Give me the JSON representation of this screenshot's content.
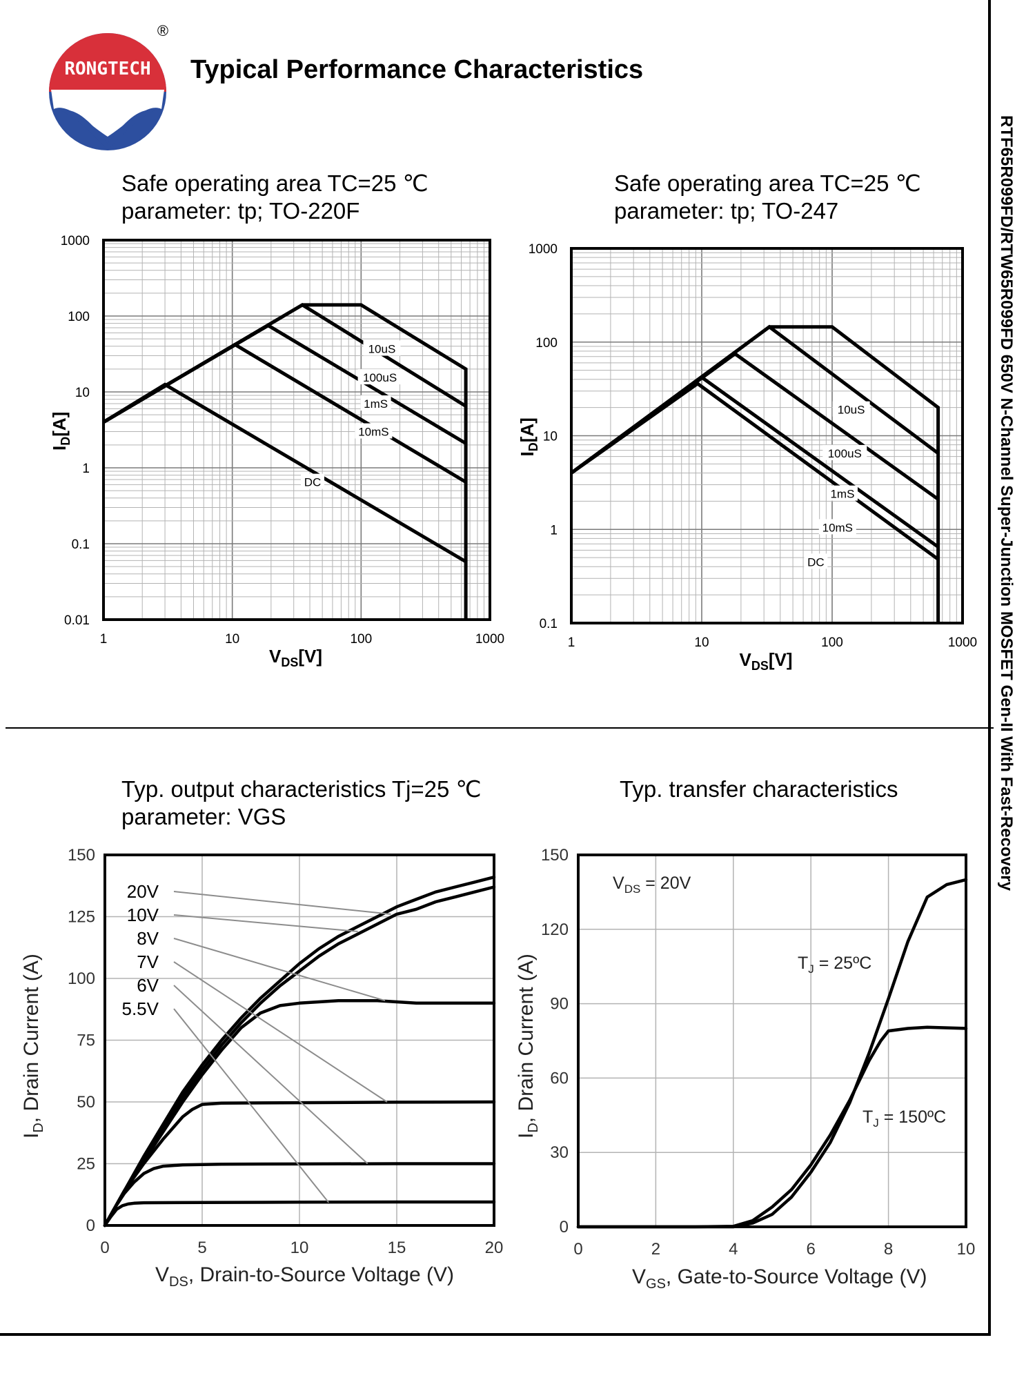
{
  "header": {
    "logo_text": "RONGTECH",
    "registered_mark": "®",
    "page_title": "Typical Performance Characteristics",
    "side_title": "RTF65R099FD/RTW65R099FD 650V N-Channel Super-Junction MOSFET Gen-II With Fast-Recovery"
  },
  "colors": {
    "ink": "#000000",
    "grid": "#b3b3b3",
    "callout": "#8c8c8c",
    "logo_red": "#d8303a",
    "logo_blue": "#2d4f9f"
  },
  "soa1": {
    "title_line1": "Safe operating area TC=25 ℃",
    "title_line2": "parameter: tp; TO-220F",
    "ylabel": "ID[A]",
    "xlabel": "VDS[V]",
    "xticks": [
      "1",
      "10",
      "100",
      "1000"
    ],
    "yticks": [
      "0.01",
      "0.1",
      "1",
      "10",
      "100",
      "1000"
    ]
  },
  "soa2": {
    "title_line1": "Safe operating area TC=25 ℃",
    "title_line2": "parameter: tp; TO-247",
    "ylabel": "ID[A]",
    "xlabel": "VDS[V]",
    "xticks": [
      "1",
      "10",
      "100",
      "1000"
    ],
    "yticks": [
      "0.1",
      "1",
      "10",
      "100",
      "1000"
    ]
  },
  "out": {
    "title_line1": "Typ. output characteristics Tj=25 ℃",
    "title_line2": "parameter: VGS",
    "xlabel": "VDS, Drain-to-Source Voltage (V)",
    "ylabel": "ID, Drain Current (A)",
    "xticks": [
      "0",
      "5",
      "10",
      "15",
      "20"
    ],
    "yticks": [
      "0",
      "25",
      "50",
      "75",
      "100",
      "125",
      "150"
    ]
  },
  "tr": {
    "title": "Typ. transfer characteristics",
    "xlabel": "VGS, Gate-to-Source Voltage (V)",
    "ylabel": "ID, Drain Current (A)",
    "xticks": [
      "0",
      "2",
      "4",
      "6",
      "8",
      "10"
    ],
    "yticks": [
      "0",
      "30",
      "60",
      "90",
      "120",
      "150"
    ],
    "annotation": "VDS = 20V"
  },
  "chart_data": [
    {
      "type": "line",
      "scale": "log-log",
      "title": "Safe operating area TC=25 ℃ parameter: tp; TO-220F",
      "xlabel": "VDS[V]",
      "ylabel": "ID[A]",
      "xlim": [
        1,
        1000
      ],
      "ylim": [
        0.01,
        1000
      ],
      "grid": true,
      "series": [
        {
          "name": "10uS",
          "label": "10uS",
          "x": [
            1,
            35,
            100,
            650,
            650
          ],
          "y": [
            4,
            140,
            140,
            20,
            0.01
          ]
        },
        {
          "name": "100uS",
          "label": "100uS",
          "x": [
            1,
            35,
            650
          ],
          "y": [
            4,
            140,
            6.5
          ]
        },
        {
          "name": "1mS",
          "label": "1mS",
          "x": [
            1,
            19,
            650
          ],
          "y": [
            4,
            75,
            2.1
          ]
        },
        {
          "name": "10mS",
          "label": "10mS",
          "x": [
            1,
            10.5,
            650
          ],
          "y": [
            4,
            42,
            0.65
          ]
        },
        {
          "name": "DC",
          "label": "DC",
          "x": [
            1,
            3,
            650
          ],
          "y": [
            4,
            12.5,
            0.058
          ]
        }
      ]
    },
    {
      "type": "line",
      "scale": "log-log",
      "title": "Safe operating area TC=25 ℃ parameter: tp; TO-247",
      "xlabel": "VDS[V]",
      "ylabel": "ID[A]",
      "xlim": [
        1,
        1000
      ],
      "ylim": [
        0.1,
        1000
      ],
      "grid": true,
      "series": [
        {
          "name": "10uS",
          "label": "10uS",
          "x": [
            1,
            33,
            100,
            650,
            650
          ],
          "y": [
            4,
            145,
            145,
            20,
            0.1
          ]
        },
        {
          "name": "100uS",
          "label": "100uS",
          "x": [
            1,
            33,
            650
          ],
          "y": [
            4,
            145,
            6.5
          ]
        },
        {
          "name": "1mS",
          "label": "1mS",
          "x": [
            1,
            18,
            650
          ],
          "y": [
            4,
            75,
            2.1
          ]
        },
        {
          "name": "10mS",
          "label": "10mS",
          "x": [
            1,
            10,
            650
          ],
          "y": [
            4,
            42,
            0.65
          ]
        },
        {
          "name": "DC",
          "label": "DC",
          "x": [
            1,
            9.3,
            650
          ],
          "y": [
            4,
            36,
            0.48
          ]
        }
      ]
    },
    {
      "type": "line",
      "title": "Typ. output characteristics Tj=25 ℃ parameter: VGS",
      "xlabel": "VDS, Drain-to-Source Voltage (V)",
      "ylabel": "ID, Drain Current (A)",
      "xlim": [
        0,
        20
      ],
      "ylim": [
        0,
        150
      ],
      "grid": true,
      "series": [
        {
          "name": "20V",
          "label": "20V",
          "x": [
            0,
            1,
            2,
            3,
            4,
            5,
            6,
            7,
            8,
            9,
            10,
            11,
            12,
            13,
            14,
            15,
            16,
            17,
            18,
            19,
            20
          ],
          "y": [
            0,
            14,
            28,
            41,
            54,
            65,
            75,
            84,
            92,
            99,
            106,
            112,
            117,
            121,
            125,
            129,
            132,
            135,
            137,
            139,
            141
          ]
        },
        {
          "name": "10V",
          "label": "10V",
          "x": [
            0,
            1,
            2,
            3,
            4,
            5,
            6,
            7,
            8,
            9,
            10,
            11,
            12,
            13,
            14,
            15,
            16,
            17,
            18,
            19,
            20
          ],
          "y": [
            0,
            14,
            27,
            40,
            52,
            63,
            73,
            82,
            90,
            97,
            103,
            109,
            114,
            118,
            122,
            126,
            128,
            131,
            133,
            135,
            137
          ]
        },
        {
          "name": "8V",
          "label": "8V",
          "x": [
            0,
            1,
            2,
            3,
            4,
            5,
            6,
            7,
            8,
            9,
            10,
            12,
            14,
            16,
            18,
            20
          ],
          "y": [
            0,
            14,
            26,
            38,
            50,
            61,
            71,
            80,
            86,
            89,
            90,
            91,
            91,
            90,
            90,
            90
          ]
        },
        {
          "name": "7V",
          "label": "7V",
          "x": [
            0,
            1,
            2,
            3,
            4,
            4.5,
            5,
            6,
            10,
            15,
            20
          ],
          "y": [
            0,
            14,
            25,
            35,
            44,
            47,
            49,
            49.5,
            49.7,
            49.9,
            50
          ]
        },
        {
          "name": "6V",
          "label": "6V",
          "x": [
            0,
            0.5,
            1,
            1.5,
            2,
            2.5,
            3,
            4,
            6,
            10,
            15,
            20
          ],
          "y": [
            0,
            7,
            13,
            17.5,
            21,
            23,
            24,
            24.5,
            24.8,
            24.9,
            25,
            25
          ]
        },
        {
          "name": "5.5V",
          "label": "5.5V",
          "x": [
            0,
            0.3,
            0.6,
            0.9,
            1.2,
            1.5,
            2,
            5,
            10,
            15,
            20
          ],
          "y": [
            0,
            3.5,
            6.5,
            8,
            8.7,
            9,
            9.2,
            9.3,
            9.4,
            9.5,
            9.5
          ]
        }
      ]
    },
    {
      "type": "line",
      "title": "Typ. transfer characteristics",
      "xlabel": "VGS, Gate-to-Source Voltage (V)",
      "ylabel": "ID, Drain Current (A)",
      "xlim": [
        0,
        10
      ],
      "ylim": [
        0,
        150
      ],
      "grid": true,
      "annotations": [
        "VDS = 20V"
      ],
      "series": [
        {
          "name": "TJ = 25ºC",
          "label": "TJ = 25ºC",
          "x": [
            0,
            3,
            4,
            4.5,
            5,
            5.5,
            6,
            6.5,
            7,
            7.5,
            8,
            8.5,
            9,
            9.5,
            10
          ],
          "y": [
            0,
            0,
            0,
            1.5,
            5,
            12,
            22,
            34,
            50,
            70,
            92,
            115,
            133,
            138,
            140
          ]
        },
        {
          "name": "TJ = 150ºC",
          "label": "TJ = 150ºC",
          "x": [
            0,
            3,
            4,
            4.5,
            5,
            5.5,
            6,
            6.5,
            7,
            7.5,
            7.8,
            8,
            8.5,
            9,
            10
          ],
          "y": [
            0,
            0,
            0.2,
            2.5,
            8,
            15,
            25,
            37,
            51,
            67,
            75,
            79,
            80,
            80.5,
            80
          ]
        }
      ]
    }
  ]
}
